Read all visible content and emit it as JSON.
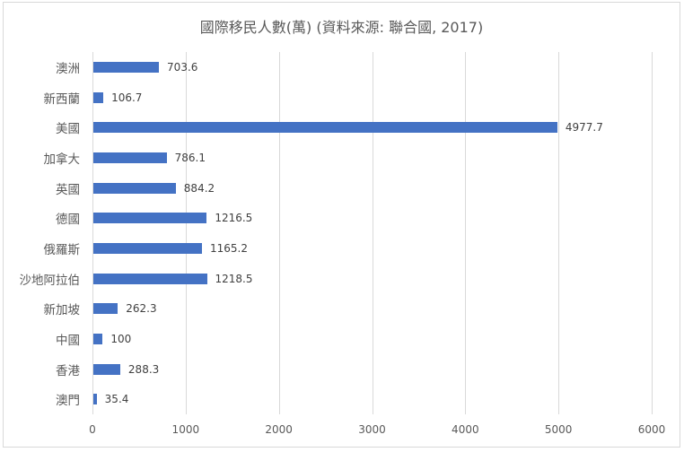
{
  "chart_data": {
    "type": "bar",
    "orientation": "horizontal",
    "title": "國際移民人數(萬) (資料來源: 聯合國, 2017)",
    "xlabel": "",
    "ylabel": "",
    "categories": [
      "澳洲",
      "新西蘭",
      "美國",
      "加拿大",
      "英國",
      "德國",
      "俄羅斯",
      "沙地阿拉伯",
      "新加坡",
      "中國",
      "香港",
      "澳門"
    ],
    "values": [
      703.6,
      106.7,
      4977.7,
      786.1,
      884.2,
      1216.5,
      1165.2,
      1218.5,
      262.3,
      100,
      288.3,
      35.4
    ],
    "value_labels": [
      "703.6",
      "106.7",
      "4977.7",
      "786.1",
      "884.2",
      "1216.5",
      "1165.2",
      "1218.5",
      "262.3",
      "100",
      "288.3",
      "35.4"
    ],
    "xlim": [
      0,
      6000
    ],
    "x_ticks": [
      "0",
      "1000",
      "2000",
      "3000",
      "4000",
      "5000",
      "6000"
    ],
    "grid": true,
    "legend": null,
    "bar_color": "#4472c4"
  }
}
